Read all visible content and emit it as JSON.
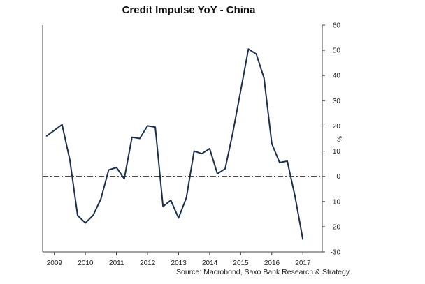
{
  "chart_data": {
    "type": "line",
    "title": "Credit Impulse YoY - China",
    "ylabel": "%",
    "source": "Source: Macrobond, Saxo Bank Research & Strategy",
    "ylim": [
      -30,
      60
    ],
    "y_ticks": [
      "60",
      "50",
      "40",
      "30",
      "20",
      "10",
      "0",
      "-10",
      "-20",
      "-30"
    ],
    "y_tick_values": [
      60,
      50,
      40,
      30,
      20,
      10,
      0,
      -10,
      -20,
      -30
    ],
    "x_tick_labels": [
      "2009",
      "2010",
      "2011",
      "2012",
      "2013",
      "2014",
      "2015",
      "2016",
      "2017"
    ],
    "x_tick_years": [
      2009,
      2010,
      2011,
      2012,
      2013,
      2014,
      2015,
      2016,
      2017
    ],
    "x_range": [
      2008.625,
      2017.625
    ],
    "grid": false,
    "reference_line": 0,
    "line_color": "#1b2f4e",
    "series": [
      {
        "x": [
          2008.75,
          2009.25,
          2009.5,
          2009.75,
          2010.0,
          2010.25,
          2010.5,
          2010.75,
          2011.0,
          2011.25,
          2011.5,
          2011.75,
          2012.0,
          2012.25,
          2012.5,
          2012.75,
          2013.0,
          2013.25,
          2013.5,
          2013.75,
          2014.0,
          2014.25,
          2014.5,
          2014.75,
          2015.0,
          2015.25,
          2015.5,
          2015.75,
          2016.0,
          2016.25,
          2016.5,
          2016.75,
          2017.0
        ],
        "values": [
          16.0,
          20.5,
          6.5,
          -15.5,
          -18.5,
          -15.5,
          -9.0,
          2.5,
          3.5,
          -1.0,
          15.5,
          15.0,
          20.0,
          19.5,
          -12.0,
          -9.5,
          -16.5,
          -8.5,
          10.0,
          9.0,
          11.0,
          1.0,
          3.0,
          17.5,
          34.0,
          50.5,
          48.5,
          39.0,
          13.0,
          5.5,
          6.0,
          -8.0,
          -25.0
        ]
      }
    ]
  }
}
